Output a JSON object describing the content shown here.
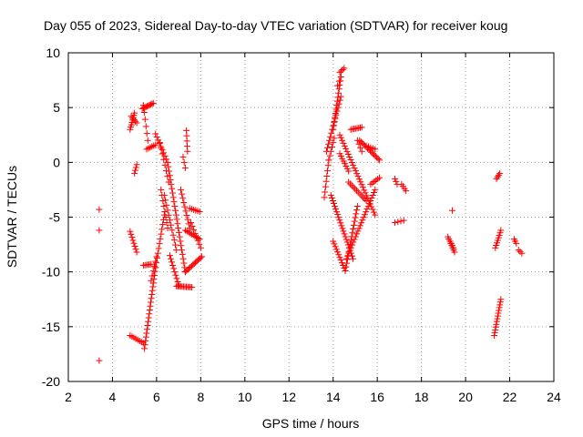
{
  "chart_data": {
    "type": "scatter",
    "title": "Day 055 of 2023, Sidereal Day-to-day VTEC variation (SDTVAR) for receiver koug",
    "xlabel": "GPS time / hours",
    "ylabel": "SDTVAR / TECUs",
    "xlim": [
      2,
      24
    ],
    "ylim": [
      -20,
      10
    ],
    "xticks": [
      "2",
      "4",
      "6",
      "8",
      "10",
      "12",
      "14",
      "16",
      "18",
      "20",
      "22",
      "24"
    ],
    "yticks": [
      "10",
      "5",
      "0",
      "-5",
      "-10",
      "-15",
      "-20"
    ],
    "grid": true,
    "marker": "plus",
    "color": "#ff0000",
    "segments": [
      {
        "from": [
          3.4,
          -4.3
        ],
        "to": [
          3.4,
          -4.3
        ],
        "n": 1
      },
      {
        "from": [
          3.4,
          -6.2
        ],
        "to": [
          3.4,
          -6.2
        ],
        "n": 1
      },
      {
        "from": [
          3.4,
          -18.1
        ],
        "to": [
          3.4,
          -18.1
        ],
        "n": 1
      },
      {
        "from": [
          4.8,
          3.0
        ],
        "to": [
          5.0,
          4.5
        ],
        "n": 8
      },
      {
        "from": [
          4.85,
          4.2
        ],
        "to": [
          5.1,
          3.6
        ],
        "n": 5
      },
      {
        "from": [
          5.0,
          -1.0
        ],
        "to": [
          5.1,
          -0.2
        ],
        "n": 4
      },
      {
        "from": [
          4.8,
          -6.3
        ],
        "to": [
          5.1,
          -8.2
        ],
        "n": 8
      },
      {
        "from": [
          4.8,
          -15.8
        ],
        "to": [
          5.4,
          -16.5
        ],
        "n": 8
      },
      {
        "from": [
          5.35,
          4.9
        ],
        "to": [
          5.85,
          5.4
        ],
        "n": 10
      },
      {
        "from": [
          5.4,
          5.2
        ],
        "to": [
          5.6,
          2.0
        ],
        "n": 6
      },
      {
        "from": [
          5.45,
          -17.0
        ],
        "to": [
          5.95,
          -9.6
        ],
        "n": 22
      },
      {
        "from": [
          5.95,
          -9.6
        ],
        "to": [
          6.35,
          -4.8
        ],
        "n": 12
      },
      {
        "from": [
          5.4,
          -9.4
        ],
        "to": [
          5.75,
          -9.3
        ],
        "n": 6
      },
      {
        "from": [
          5.75,
          -10.8
        ],
        "to": [
          6.0,
          -8.6
        ],
        "n": 6
      },
      {
        "from": [
          5.55,
          1.2
        ],
        "to": [
          5.95,
          1.6
        ],
        "n": 6
      },
      {
        "from": [
          5.95,
          2.6
        ],
        "to": [
          6.5,
          0.0
        ],
        "n": 10
      },
      {
        "from": [
          6.15,
          1.8
        ],
        "to": [
          6.55,
          -1.8
        ],
        "n": 8
      },
      {
        "from": [
          6.5,
          0.0
        ],
        "to": [
          7.3,
          -10.0
        ],
        "n": 26
      },
      {
        "from": [
          6.2,
          -2.5
        ],
        "to": [
          6.5,
          -6.0
        ],
        "n": 8
      },
      {
        "from": [
          6.35,
          -3.0
        ],
        "to": [
          6.9,
          -8.0
        ],
        "n": 12
      },
      {
        "from": [
          6.6,
          -8.5
        ],
        "to": [
          7.0,
          -11.2
        ],
        "n": 10
      },
      {
        "from": [
          6.9,
          -11.3
        ],
        "to": [
          7.6,
          -11.4
        ],
        "n": 12
      },
      {
        "from": [
          7.3,
          -10.0
        ],
        "to": [
          8.05,
          -8.6
        ],
        "n": 14
      },
      {
        "from": [
          7.1,
          -2.5
        ],
        "to": [
          7.5,
          -6.0
        ],
        "n": 10
      },
      {
        "from": [
          7.2,
          0.5
        ],
        "to": [
          7.3,
          -0.5
        ],
        "n": 3
      },
      {
        "from": [
          7.35,
          2.9
        ],
        "to": [
          7.4,
          1.0
        ],
        "n": 5
      },
      {
        "from": [
          7.3,
          -6.2
        ],
        "to": [
          7.95,
          -7.0
        ],
        "n": 10
      },
      {
        "from": [
          7.5,
          -4.2
        ],
        "to": [
          7.95,
          -4.5
        ],
        "n": 6
      },
      {
        "from": [
          7.55,
          -5.5
        ],
        "to": [
          8.0,
          -7.8
        ],
        "n": 8
      },
      {
        "from": [
          13.6,
          -3.2
        ],
        "to": [
          13.8,
          0.2
        ],
        "n": 8
      },
      {
        "from": [
          13.8,
          0.2
        ],
        "to": [
          14.05,
          2.2
        ],
        "n": 6
      },
      {
        "from": [
          13.7,
          1.0
        ],
        "to": [
          14.35,
          6.0
        ],
        "n": 16
      },
      {
        "from": [
          14.0,
          3.0
        ],
        "to": [
          14.35,
          7.8
        ],
        "n": 14
      },
      {
        "from": [
          14.2,
          7.0
        ],
        "to": [
          14.35,
          7.8
        ],
        "n": 3
      },
      {
        "from": [
          14.3,
          8.2
        ],
        "to": [
          14.5,
          8.6
        ],
        "n": 4
      },
      {
        "from": [
          14.3,
          0.8
        ],
        "to": [
          14.7,
          -0.8
        ],
        "n": 8
      },
      {
        "from": [
          13.9,
          -3.0
        ],
        "to": [
          14.9,
          -8.8
        ],
        "n": 24
      },
      {
        "from": [
          14.0,
          -7.2
        ],
        "to": [
          14.55,
          -9.9
        ],
        "n": 12
      },
      {
        "from": [
          14.55,
          -9.9
        ],
        "to": [
          15.1,
          -4.0
        ],
        "n": 18
      },
      {
        "from": [
          14.6,
          -8.8
        ],
        "to": [
          15.9,
          -2.5
        ],
        "n": 26
      },
      {
        "from": [
          14.3,
          2.5
        ],
        "to": [
          15.9,
          -4.8
        ],
        "n": 30
      },
      {
        "from": [
          14.8,
          3.0
        ],
        "to": [
          15.3,
          3.2
        ],
        "n": 8
      },
      {
        "from": [
          15.1,
          2.0
        ],
        "to": [
          15.3,
          1.0
        ],
        "n": 4
      },
      {
        "from": [
          14.7,
          -1.8
        ],
        "to": [
          15.5,
          -3.5
        ],
        "n": 12
      },
      {
        "from": [
          15.2,
          2.0
        ],
        "to": [
          16.1,
          0.2
        ],
        "n": 16
      },
      {
        "from": [
          15.5,
          1.5
        ],
        "to": [
          15.9,
          1.2
        ],
        "n": 5
      },
      {
        "from": [
          15.7,
          -2.0
        ],
        "to": [
          16.1,
          -1.4
        ],
        "n": 6
      },
      {
        "from": [
          16.8,
          -1.5
        ],
        "to": [
          16.9,
          -2.0
        ],
        "n": 3
      },
      {
        "from": [
          17.1,
          -2.0
        ],
        "to": [
          17.3,
          -2.6
        ],
        "n": 4
      },
      {
        "from": [
          16.8,
          -5.5
        ],
        "to": [
          17.2,
          -5.3
        ],
        "n": 4
      },
      {
        "from": [
          19.2,
          -6.8
        ],
        "to": [
          19.5,
          -8.2
        ],
        "n": 8
      },
      {
        "from": [
          19.3,
          -7.2
        ],
        "to": [
          19.45,
          -7.8
        ],
        "n": 4
      },
      {
        "from": [
          19.4,
          -4.4
        ],
        "to": [
          19.4,
          -4.4
        ],
        "n": 1
      },
      {
        "from": [
          21.3,
          -15.8
        ],
        "to": [
          21.6,
          -12.5
        ],
        "n": 14
      },
      {
        "from": [
          21.35,
          -7.8
        ],
        "to": [
          21.6,
          -6.2
        ],
        "n": 8
      },
      {
        "from": [
          21.4,
          -1.5
        ],
        "to": [
          21.55,
          -1.0
        ],
        "n": 4
      },
      {
        "from": [
          22.2,
          -7.0
        ],
        "to": [
          22.3,
          -7.4
        ],
        "n": 3
      },
      {
        "from": [
          22.4,
          -8.0
        ],
        "to": [
          22.55,
          -8.3
        ],
        "n": 3
      }
    ]
  }
}
